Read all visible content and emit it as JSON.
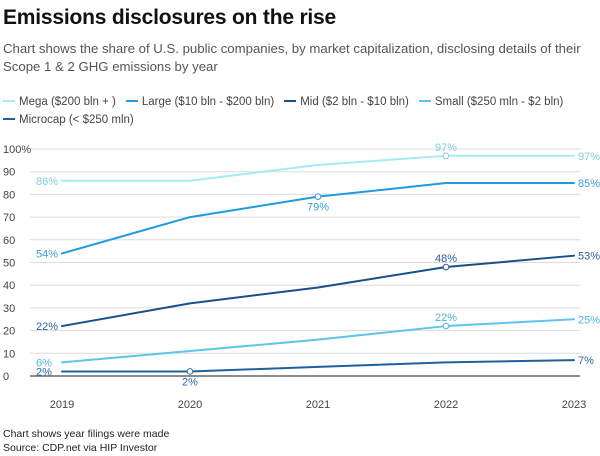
{
  "header": {
    "title": "Emissions disclosures on the rise",
    "subtitle": "Chart shows the share of U.S. public companies, by market capitalization, disclosing details of their Scope 1 & 2 GHG emissions by year"
  },
  "footer": {
    "note": "Chart shows year filings were made",
    "source": "Source: CDP.net via HIP Investor"
  },
  "chart_data": {
    "type": "line",
    "title": "Emissions disclosures on the rise",
    "x": [
      2019,
      2020,
      2021,
      2022,
      2023
    ],
    "x_tick_labels": [
      "2019",
      "2020",
      "2021",
      "2022",
      "2023"
    ],
    "ylim": [
      0,
      100
    ],
    "y_ticks": [
      0,
      10,
      20,
      30,
      40,
      50,
      60,
      70,
      80,
      90,
      100
    ],
    "y_tick_labels": [
      "0",
      "10",
      "20",
      "30",
      "40",
      "50",
      "60",
      "70",
      "80",
      "90",
      "100%"
    ],
    "grid": true,
    "legend_position": "top",
    "series": [
      {
        "name": "Mega ($200 bln + )",
        "color": "#a8eaf2",
        "values": [
          86,
          86,
          93,
          97,
          97
        ]
      },
      {
        "name": "Large ($10 bln - $200 bln)",
        "color": "#1f9be0",
        "values": [
          54,
          70,
          79,
          85,
          85
        ]
      },
      {
        "name": "Mid ($2 bln - $10 bln)",
        "color": "#1a4f8c",
        "values": [
          22,
          32,
          39,
          48,
          53
        ]
      },
      {
        "name": "Small ($250 mln - $2 bln)",
        "color": "#5cc5ee",
        "values": [
          6,
          11,
          16,
          22,
          25
        ]
      },
      {
        "name": "Microcap (< $250 mln)",
        "color": "#20609e",
        "values": [
          2,
          2,
          4,
          6,
          7
        ]
      }
    ],
    "annotations": [
      {
        "series": 0,
        "index": 0,
        "text": "86%",
        "marker": false,
        "color": "#7fcfdd"
      },
      {
        "series": 0,
        "index": 3,
        "text": "97%",
        "marker": true,
        "color": "#7fcfdd"
      },
      {
        "series": 0,
        "index": 4,
        "text": "97%",
        "marker": false,
        "color": "#7fcfdd"
      },
      {
        "series": 1,
        "index": 0,
        "text": "54%",
        "marker": false,
        "color": "#3a9fd8"
      },
      {
        "series": 1,
        "index": 2,
        "text": "79%",
        "marker": true,
        "color": "#3a9fd8"
      },
      {
        "series": 1,
        "index": 4,
        "text": "85%",
        "marker": false,
        "color": "#3a9fd8"
      },
      {
        "series": 2,
        "index": 0,
        "text": "22%",
        "marker": false,
        "color": "#2c5f9a"
      },
      {
        "series": 2,
        "index": 3,
        "text": "48%",
        "marker": true,
        "color": "#2c5f9a"
      },
      {
        "series": 2,
        "index": 4,
        "text": "53%",
        "marker": false,
        "color": "#2c5f9a"
      },
      {
        "series": 3,
        "index": 0,
        "text": "6%",
        "marker": false,
        "color": "#4cb4e0"
      },
      {
        "series": 3,
        "index": 3,
        "text": "22%",
        "marker": true,
        "color": "#4cb4e0"
      },
      {
        "series": 3,
        "index": 4,
        "text": "25%",
        "marker": false,
        "color": "#4cb4e0"
      },
      {
        "series": 4,
        "index": 0,
        "text": "2%",
        "marker": false,
        "color": "#2c6aa8"
      },
      {
        "series": 4,
        "index": 1,
        "text": "2%",
        "marker": true,
        "color": "#2c6aa8"
      },
      {
        "series": 4,
        "index": 4,
        "text": "7%",
        "marker": false,
        "color": "#2c6aa8"
      }
    ]
  }
}
